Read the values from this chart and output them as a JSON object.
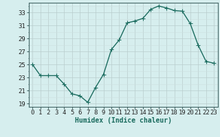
{
  "x": [
    0,
    1,
    2,
    3,
    4,
    5,
    6,
    7,
    8,
    9,
    10,
    11,
    12,
    13,
    14,
    15,
    16,
    17,
    18,
    19,
    20,
    21,
    22,
    23
  ],
  "y": [
    25,
    23.3,
    23.3,
    23.3,
    22,
    20.5,
    20.2,
    19.2,
    21.5,
    23.5,
    27.3,
    28.8,
    31.4,
    31.7,
    32.1,
    33.5,
    34.0,
    33.7,
    33.3,
    33.2,
    31.3,
    28.0,
    25.5,
    25.2
  ],
  "line_color": "#1a6b5e",
  "marker": "+",
  "markersize": 4,
  "linewidth": 1.0,
  "background_color": "#d6eeee",
  "grid_color_major": "#b8cccc",
  "grid_color_minor": "#ccdede",
  "xlabel": "Humidex (Indice chaleur)",
  "xlabel_fontsize": 7,
  "ylabel_ticks": [
    19,
    21,
    23,
    25,
    27,
    29,
    31,
    33
  ],
  "xlim": [
    -0.5,
    23.5
  ],
  "ylim": [
    18.5,
    34.5
  ],
  "tick_fontsize": 6.5,
  "spine_color": "#446666"
}
